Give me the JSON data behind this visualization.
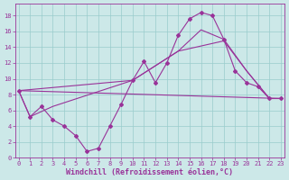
{
  "xlabel": "Windchill (Refroidissement éolien,°C)",
  "bg_color": "#cce8e8",
  "line_color": "#993399",
  "grid_color": "#99cccc",
  "x_ticks": [
    0,
    1,
    2,
    3,
    4,
    5,
    6,
    7,
    8,
    9,
    10,
    11,
    12,
    13,
    14,
    15,
    16,
    17,
    18,
    19,
    20,
    21,
    22,
    23
  ],
  "y_ticks": [
    0,
    2,
    4,
    6,
    8,
    10,
    12,
    14,
    16,
    18
  ],
  "xlim": [
    -0.3,
    23.3
  ],
  "ylim": [
    0,
    19.5
  ],
  "line1_x": [
    0,
    1,
    2,
    3,
    4,
    5,
    6,
    7,
    8,
    9,
    10,
    11,
    12,
    13,
    14,
    15,
    16,
    17,
    18,
    19,
    20,
    21,
    22,
    23
  ],
  "line1_y": [
    8.5,
    5.2,
    6.5,
    4.8,
    4.0,
    2.8,
    0.8,
    1.2,
    4.0,
    6.8,
    9.8,
    12.2,
    9.5,
    12.0,
    15.5,
    17.6,
    18.4,
    18.0,
    15.0,
    11.0,
    9.5,
    9.0,
    7.5,
    7.5
  ],
  "line2_x": [
    0,
    1,
    3,
    10,
    14,
    16,
    18,
    20,
    22,
    23
  ],
  "line2_y": [
    8.5,
    5.2,
    6.5,
    9.8,
    13.5,
    16.2,
    15.0,
    11.0,
    7.5,
    7.5
  ],
  "line3_x": [
    0,
    23
  ],
  "line3_y": [
    8.5,
    7.5
  ],
  "line4_x": [
    0,
    10,
    14,
    18,
    20,
    22,
    23
  ],
  "line4_y": [
    8.5,
    9.8,
    13.5,
    14.8,
    11.0,
    7.5,
    7.5
  ],
  "tick_fontsize": 5.0,
  "xlabel_fontsize": 6.0
}
